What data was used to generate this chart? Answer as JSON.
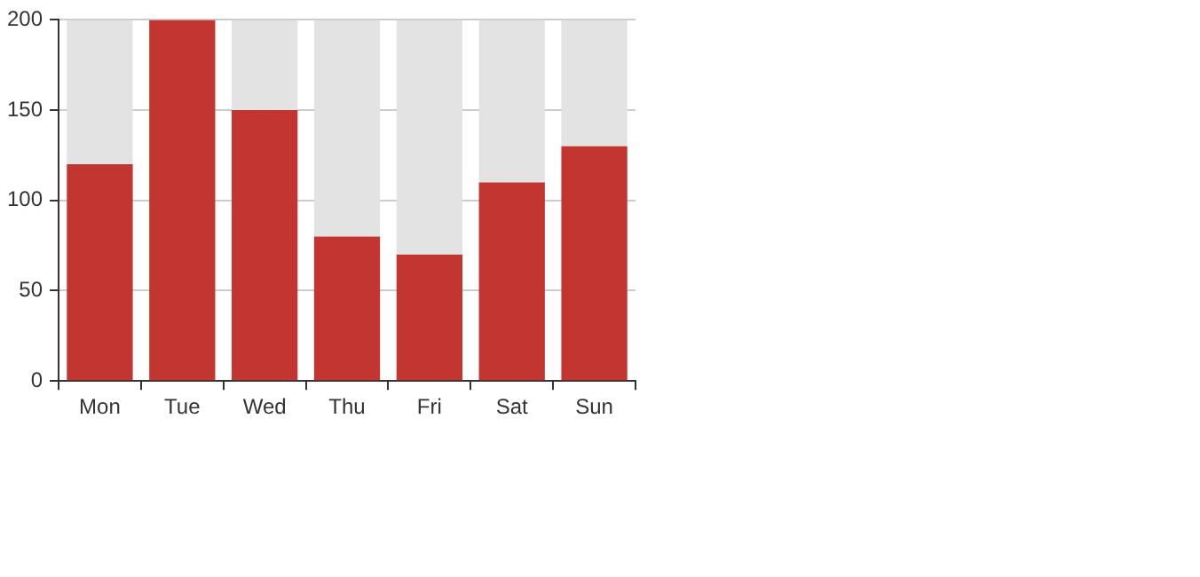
{
  "chart_data": {
    "type": "bar",
    "stacked": true,
    "categories": [
      "Mon",
      "Tue",
      "Wed",
      "Thu",
      "Fri",
      "Sat",
      "Sun"
    ],
    "series": [
      {
        "color": "#c23531",
        "values": [
          120,
          200,
          150,
          80,
          70,
          110,
          130
        ]
      },
      {
        "color": "#e3e3e3",
        "values": [
          80,
          0,
          50,
          120,
          130,
          90,
          70
        ]
      }
    ],
    "ylim": [
      0,
      200
    ],
    "yticks": [
      0,
      50,
      100,
      150,
      200
    ],
    "grid": "y",
    "legend": false
  }
}
